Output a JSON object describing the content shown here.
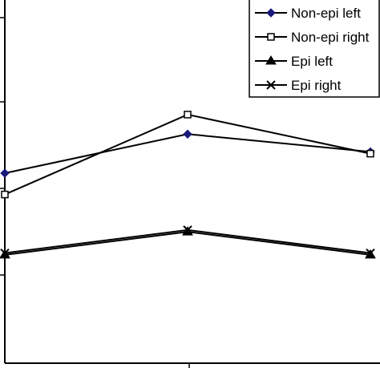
{
  "chart_data": {
    "type": "line",
    "x": [
      1,
      2,
      3
    ],
    "xlim": [
      1,
      3
    ],
    "ylim": [
      0,
      1
    ],
    "grid": false,
    "legend_position": "top-right",
    "series": [
      {
        "name": "Non-epi left",
        "marker": "diamond-filled",
        "color": "#1a1a7a",
        "values": [
          0.535,
          0.645,
          0.595
        ]
      },
      {
        "name": "Non-epi right",
        "marker": "square-open",
        "color": "#000000",
        "values": [
          0.475,
          0.7,
          0.59
        ]
      },
      {
        "name": "Epi left",
        "marker": "triangle-filled",
        "color": "#000000",
        "values": [
          0.305,
          0.37,
          0.305
        ]
      },
      {
        "name": "Epi right",
        "marker": "x-cross",
        "color": "#000000",
        "values": [
          0.31,
          0.375,
          0.31
        ]
      }
    ]
  }
}
